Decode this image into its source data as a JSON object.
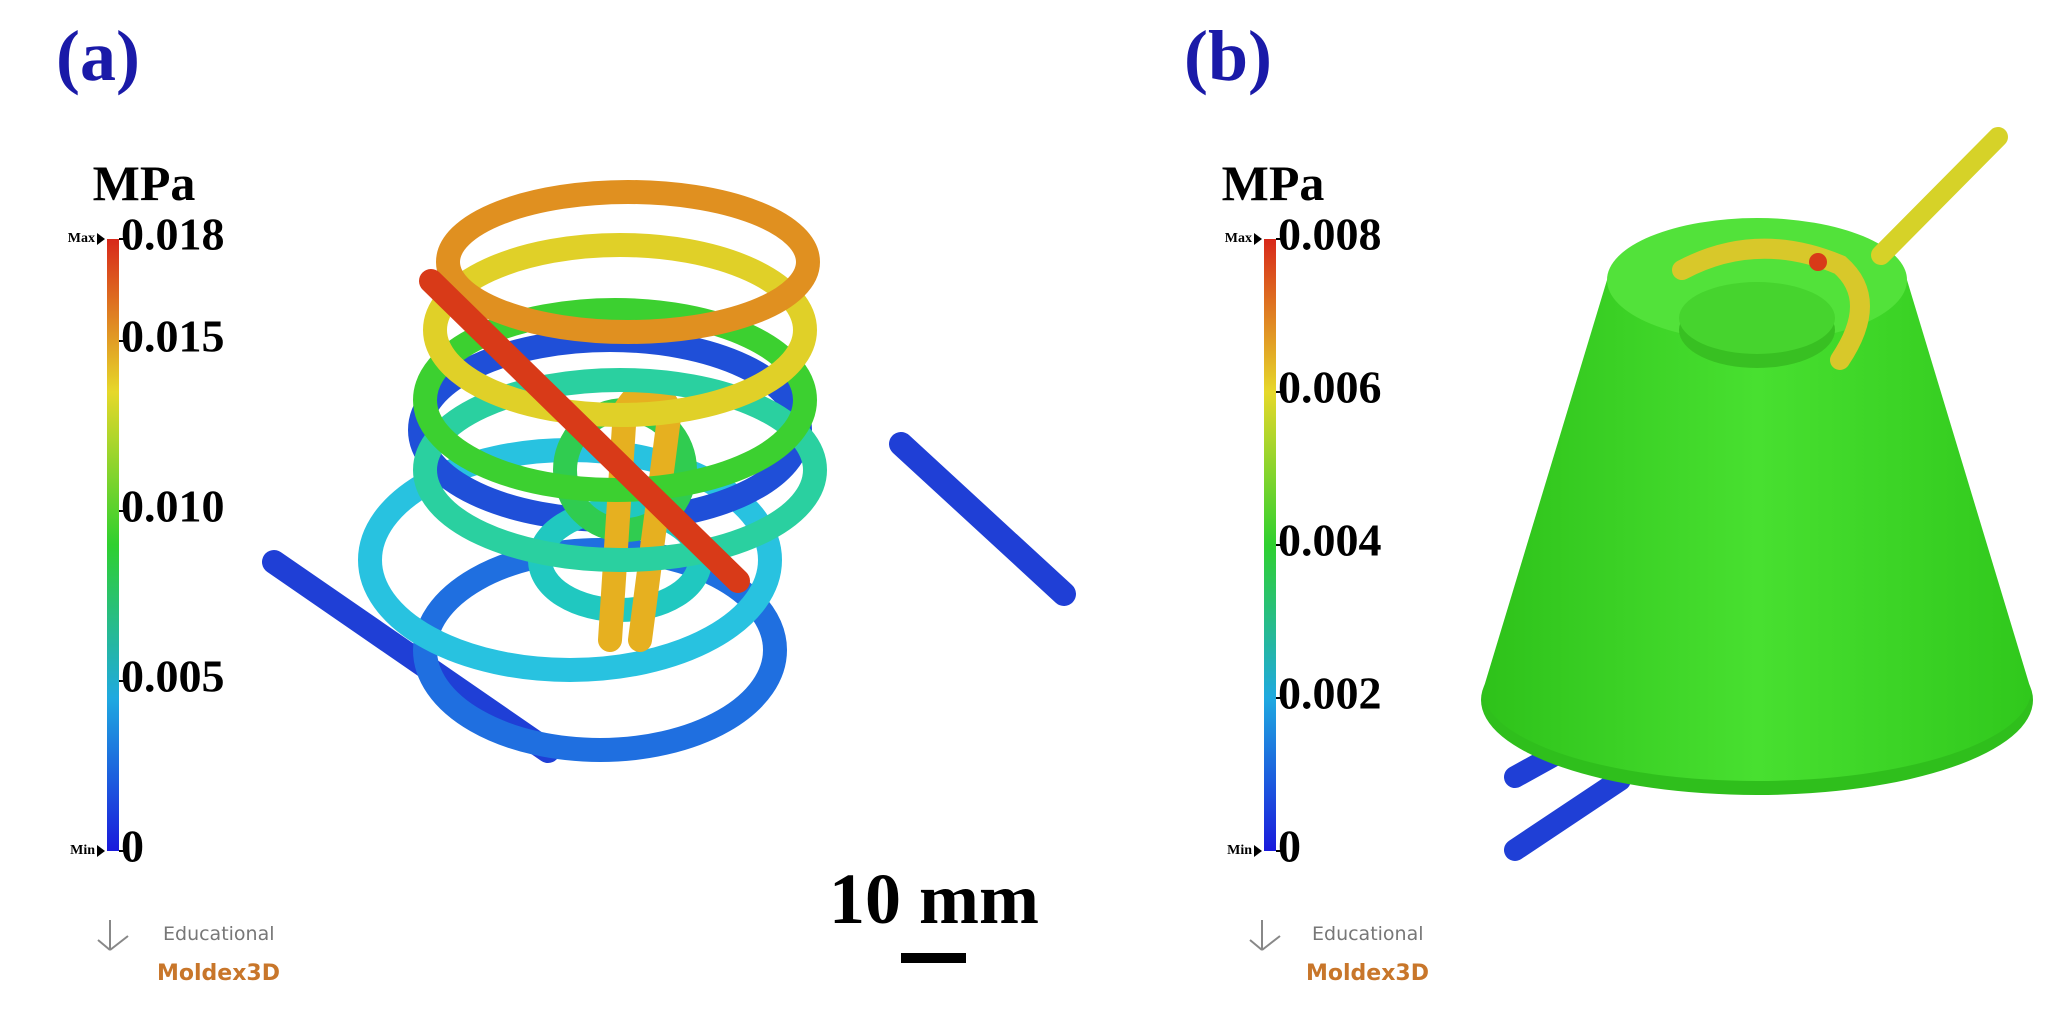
{
  "panels": [
    {
      "label": "(a)",
      "unit": "MPa",
      "max_label": "Max",
      "min_label": "Min",
      "ylim": [
        0,
        0.018
      ],
      "yticks": [
        0,
        {
          "value": 0.005,
          "label": "0.005"
        },
        {
          "value": 0.01,
          "label": "0.010"
        },
        {
          "value": 0.015,
          "label": "0.015"
        },
        0.018
      ],
      "watermark": {
        "line1": "Educational",
        "line2": "Moldex3D"
      }
    },
    {
      "label": "(b)",
      "unit": "MPa",
      "max_label": "Max",
      "min_label": "Min",
      "ylim": [
        0,
        0.008
      ],
      "yticks": [
        0,
        0.002,
        0.004,
        0.006,
        0.008
      ],
      "watermark": {
        "line1": "Educational",
        "line2": "Moldex3D"
      }
    }
  ],
  "scale_bar": "10 mm"
}
